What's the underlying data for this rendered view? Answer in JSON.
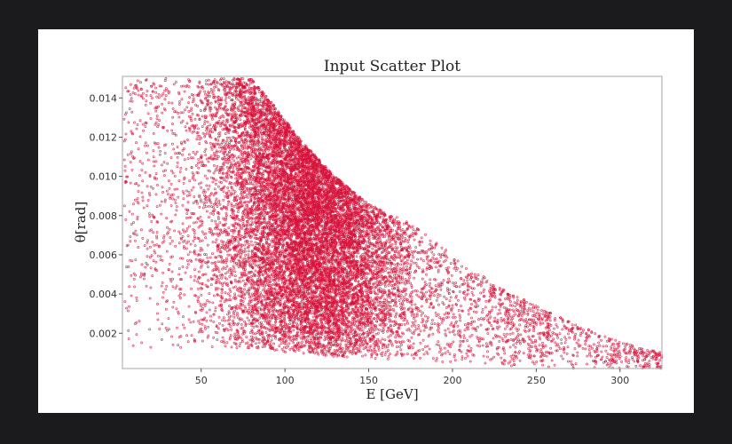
{
  "chart_data": {
    "type": "scatter",
    "title": "Input Scatter Plot",
    "xlabel": "E [GeV]",
    "ylabel": "θ[rad]",
    "xlim": [
      3,
      325
    ],
    "ylim": [
      0.0002,
      0.0151
    ],
    "xticks": [
      "50",
      "100",
      "150",
      "200",
      "250",
      "300"
    ],
    "yticks": [
      "0.002",
      "0.004",
      "0.006",
      "0.008",
      "0.010",
      "0.012",
      "0.014"
    ],
    "grid": false,
    "marker_color": "#d6123a",
    "series": [
      {
        "approx_point_count": 14000,
        "upper_envelope_E": [
          5,
          80,
          90,
          110,
          130,
          150,
          175,
          200,
          225,
          250,
          275,
          300,
          325
        ],
        "upper_envelope_theta": [
          0.015,
          0.015,
          0.014,
          0.0118,
          0.01,
          0.0086,
          0.0076,
          0.006,
          0.0045,
          0.0034,
          0.0024,
          0.0016,
          0.001
        ],
        "density_peak_E": 110,
        "density_peak_theta": 0.0085
      }
    ]
  }
}
